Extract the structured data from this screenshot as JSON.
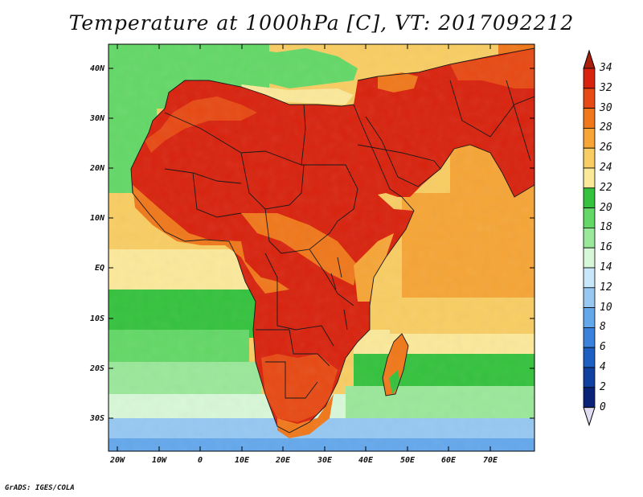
{
  "title": "Temperature at 1000hPa [C], VT: 2017092212",
  "credit": "GrADS: IGES/COLA",
  "map": {
    "variable": "Temperature at 1000hPa",
    "units": "C",
    "valid_time": "2017092212",
    "lon_range": [
      -22,
      81
    ],
    "lat_range": [
      -36,
      45
    ],
    "lat_ticks": [
      "40N",
      "30N",
      "20N",
      "10N",
      "EQ",
      "10S",
      "20S",
      "30S"
    ],
    "lon_ticks": [
      "20W",
      "10W",
      "0",
      "10E",
      "20E",
      "30E",
      "40E",
      "50E",
      "60E",
      "70E"
    ]
  },
  "colorbar": {
    "levels": [
      "34",
      "32",
      "30",
      "28",
      "26",
      "24",
      "22",
      "20",
      "18",
      "16",
      "14",
      "12",
      "10",
      "8",
      "6",
      "4",
      "2",
      "0"
    ],
    "colors": [
      "#d8230e",
      "#e74a14",
      "#f0781b",
      "#f6a536",
      "#f8cd63",
      "#fbe99a",
      "#35c23e",
      "#63d867",
      "#9ae89a",
      "#d8f7d8",
      "#c8e7f8",
      "#96c8f2",
      "#64a8ec",
      "#3a82dc",
      "#1e5fc4",
      "#1040a0",
      "#0a2378",
      "#a91f0c",
      "#e0dcf2"
    ]
  }
}
